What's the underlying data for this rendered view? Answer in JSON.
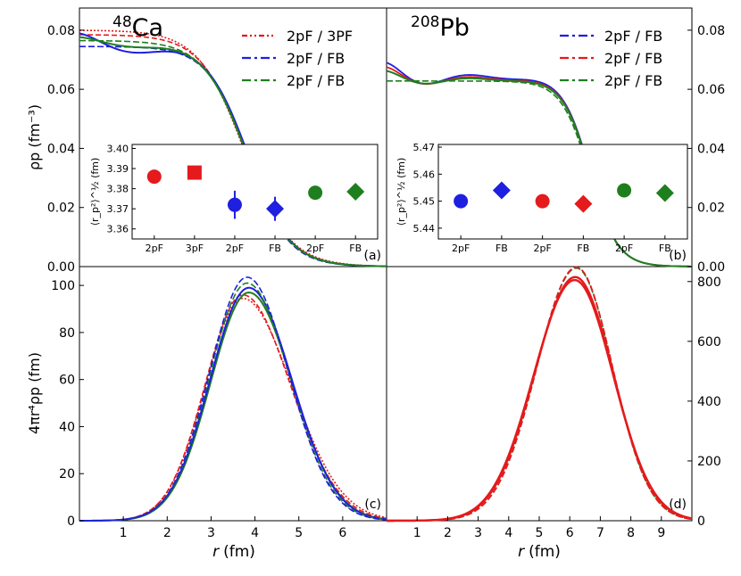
{
  "figure": {
    "x_label_prefix": "r",
    "x_label_unit": "(fm)",
    "y_label_top": "ρp (fm⁻³)",
    "y_label_bottom": "4πr⁴ρp (fm)"
  },
  "chart_data": [
    {
      "id": "a",
      "type": "line",
      "panel_label": "(a)",
      "nucleus_mass": "48",
      "nucleus_symbol": "Ca",
      "xlim": [
        0,
        7
      ],
      "ylim": [
        0,
        0.0875
      ],
      "yticks": [
        "0.00",
        "0.02",
        "0.04",
        "0.06",
        "0.08"
      ],
      "ytick_values": [
        0,
        0.02,
        0.04,
        0.06,
        0.08
      ],
      "legend": [
        {
          "label": "2pF / 3PF",
          "color": "#e41a1c",
          "dash": "6,3,2,3,2,3"
        },
        {
          "label": "2pF / FB",
          "color": "#1f1fe0",
          "dash": "10,4,3,4"
        },
        {
          "label": "2pF / FB",
          "color": "#1f7f1f",
          "dash": "10,4,3,4"
        }
      ],
      "series": [
        {
          "name": "Ca red 2pF",
          "color": "#e41a1c",
          "rho0": 0.0785,
          "R": 3.77,
          "a": 0.5,
          "dash": "6,3",
          "w": 1.6
        },
        {
          "name": "Ca red 3PF",
          "color": "#e41a1c",
          "rho0": 0.08,
          "R": 3.74,
          "a": 0.52,
          "dash": "2,2",
          "w": 1.6
        },
        {
          "name": "Ca blue FB",
          "color": "#1f1fe0",
          "rho0": 0.0745,
          "R": 3.86,
          "a": 0.47,
          "dash": "",
          "w": 2.0,
          "osc": 0.0045
        },
        {
          "name": "Ca blue 2pF",
          "color": "#1f1fe0",
          "rho0": 0.0745,
          "R": 3.84,
          "a": 0.46,
          "dash": "7,3",
          "w": 1.6
        },
        {
          "name": "Ca green FB",
          "color": "#1f7f1f",
          "rho0": 0.0755,
          "R": 3.82,
          "a": 0.48,
          "dash": "",
          "w": 2.0,
          "osc": 0.0022
        },
        {
          "name": "Ca green 2pF",
          "color": "#1f7f1f",
          "rho0": 0.0765,
          "R": 3.8,
          "a": 0.49,
          "dash": "7,3",
          "w": 1.6
        }
      ],
      "inset": {
        "ylabel": "⟨r_p²⟩^½ (fm)",
        "ylim": [
          3.355,
          3.402
        ],
        "yticks": [
          "3.36",
          "3.37",
          "3.38",
          "3.39",
          "3.40"
        ],
        "ytick_values": [
          3.36,
          3.37,
          3.38,
          3.39,
          3.4
        ],
        "categories": [
          "2pF",
          "3pF",
          "2pF",
          "FB",
          "2pF",
          "FB"
        ],
        "points": [
          {
            "value": 3.386,
            "err": 0,
            "color": "#e41a1c",
            "marker": "circle"
          },
          {
            "value": 3.388,
            "err": 0,
            "color": "#e41a1c",
            "marker": "square"
          },
          {
            "value": 3.372,
            "err": 0.007,
            "color": "#1f1fe0",
            "marker": "circle"
          },
          {
            "value": 3.37,
            "err": 0.006,
            "color": "#1f1fe0",
            "marker": "diamond"
          },
          {
            "value": 3.378,
            "err": 0,
            "color": "#1f7f1f",
            "marker": "circle"
          },
          {
            "value": 3.3785,
            "err": 0,
            "color": "#1f7f1f",
            "marker": "diamond"
          }
        ]
      }
    },
    {
      "id": "b",
      "type": "line",
      "panel_label": "(b)",
      "nucleus_mass": "208",
      "nucleus_symbol": "Pb",
      "xlim": [
        0,
        10
      ],
      "ylim": [
        0,
        0.0875
      ],
      "yticks": [
        "0.00",
        "0.02",
        "0.04",
        "0.06",
        "0.08"
      ],
      "ytick_values": [
        0,
        0.02,
        0.04,
        0.06,
        0.08
      ],
      "legend": [
        {
          "label": "2pF / FB",
          "color": "#1f1fe0",
          "dash": "10,4,3,4"
        },
        {
          "label": "2pF / FB",
          "color": "#e41a1c",
          "dash": "10,4,3,4"
        },
        {
          "label": "2pF / FB",
          "color": "#1f7f1f",
          "dash": "10,4,3,4"
        }
      ],
      "series": [
        {
          "name": "Pb blue FB",
          "color": "#1f1fe0",
          "rho0": 0.064,
          "R": 6.67,
          "a": 0.45,
          "dash": "",
          "w": 1.8,
          "osc": 0.005
        },
        {
          "name": "Pb red FB",
          "color": "#e41a1c",
          "rho0": 0.0635,
          "R": 6.67,
          "a": 0.45,
          "dash": "",
          "w": 1.8,
          "osc": 0.004
        },
        {
          "name": "Pb green FB",
          "color": "#1f7f1f",
          "rho0": 0.0632,
          "R": 6.67,
          "a": 0.45,
          "dash": "",
          "w": 2.0,
          "osc": 0.003
        },
        {
          "name": "Pb green 2pF",
          "color": "#1f7f1f",
          "rho0": 0.0628,
          "R": 6.64,
          "a": 0.46,
          "dash": "7,3",
          "w": 1.6
        }
      ],
      "inset": {
        "ylabel": "⟨r_p²⟩^½ (fm)",
        "ylim": [
          5.436,
          5.471
        ],
        "yticks": [
          "5.44",
          "5.45",
          "5.46",
          "5.47"
        ],
        "ytick_values": [
          5.44,
          5.45,
          5.46,
          5.47
        ],
        "categories": [
          "2pF",
          "FB",
          "2pF",
          "FB",
          "2pF",
          "FB"
        ],
        "points": [
          {
            "value": 5.45,
            "err": 0,
            "color": "#1f1fe0",
            "marker": "circle"
          },
          {
            "value": 5.454,
            "err": 0,
            "color": "#1f1fe0",
            "marker": "diamond"
          },
          {
            "value": 5.45,
            "err": 0,
            "color": "#e41a1c",
            "marker": "circle"
          },
          {
            "value": 5.449,
            "err": 0,
            "color": "#e41a1c",
            "marker": "diamond"
          },
          {
            "value": 5.454,
            "err": 0,
            "color": "#1f7f1f",
            "marker": "circle"
          },
          {
            "value": 5.453,
            "err": 0,
            "color": "#1f7f1f",
            "marker": "diamond"
          }
        ]
      }
    },
    {
      "id": "c",
      "type": "line",
      "panel_label": "(c)",
      "xlim": [
        0,
        7
      ],
      "ylim": [
        0,
        108
      ],
      "xticks": [
        "1",
        "2",
        "3",
        "4",
        "5",
        "6"
      ],
      "xtick_values": [
        1,
        2,
        3,
        4,
        5,
        6
      ],
      "yticks": [
        "0",
        "20",
        "40",
        "60",
        "80",
        "100"
      ],
      "ytick_values": [
        0,
        20,
        40,
        60,
        80,
        100
      ],
      "series": [
        {
          "name": "Ca red 2pF",
          "color": "#e41a1c",
          "peak": 96,
          "mu": 3.72,
          "sl": 0.85,
          "sr": 1.08,
          "dash": "6,3",
          "w": 1.6
        },
        {
          "name": "Ca red 3PF",
          "color": "#e41a1c",
          "peak": 94.5,
          "mu": 3.72,
          "sl": 0.85,
          "sr": 1.12,
          "dash": "2,2",
          "w": 1.6
        },
        {
          "name": "Ca green FB",
          "color": "#1f7f1f",
          "peak": 97,
          "mu": 3.86,
          "sl": 0.87,
          "sr": 0.99,
          "dash": "",
          "w": 2.0
        },
        {
          "name": "Ca blue FB",
          "color": "#1f1fe0",
          "peak": 99,
          "mu": 3.86,
          "sl": 0.88,
          "sr": 0.98,
          "dash": "",
          "w": 2.0
        },
        {
          "name": "Ca green 2pF",
          "color": "#1f7f1f",
          "peak": 101,
          "mu": 3.82,
          "sl": 0.86,
          "sr": 0.97,
          "dash": "7,3",
          "w": 1.6
        },
        {
          "name": "Ca blue 2pF",
          "color": "#1f1fe0",
          "peak": 103.5,
          "mu": 3.82,
          "sl": 0.86,
          "sr": 0.95,
          "dash": "7,3",
          "w": 1.6
        }
      ]
    },
    {
      "id": "d",
      "type": "line",
      "panel_label": "(d)",
      "xlim": [
        0,
        10
      ],
      "ylim": [
        0,
        850
      ],
      "xticks": [
        "1",
        "2",
        "3",
        "4",
        "5",
        "6",
        "7",
        "8",
        "9"
      ],
      "xtick_values": [
        1,
        2,
        3,
        4,
        5,
        6,
        7,
        8,
        9
      ],
      "yticks": [
        "0",
        "200",
        "400",
        "600",
        "800"
      ],
      "ytick_values": [
        0,
        200,
        400,
        600,
        800
      ],
      "series": [
        {
          "name": "Pb green 2pF",
          "color": "#1f7f1f",
          "peak": 845,
          "mu": 6.22,
          "sl": 1.3,
          "sr": 1.18,
          "dash": "7,3",
          "w": 1.6
        },
        {
          "name": "Pb red 2pF",
          "color": "#e41a1c",
          "peak": 848,
          "mu": 6.22,
          "sl": 1.3,
          "sr": 1.18,
          "dash": "7,3",
          "w": 1.8
        },
        {
          "name": "Pb red FB",
          "color": "#e41a1c",
          "peak": 815,
          "mu": 6.18,
          "sl": 1.33,
          "sr": 1.24,
          "dash": "",
          "w": 2.4
        },
        {
          "name": "Pb red FB 2",
          "color": "#e41a1c",
          "peak": 805,
          "mu": 6.16,
          "sl": 1.34,
          "sr": 1.26,
          "dash": "",
          "w": 2.4
        }
      ]
    }
  ]
}
